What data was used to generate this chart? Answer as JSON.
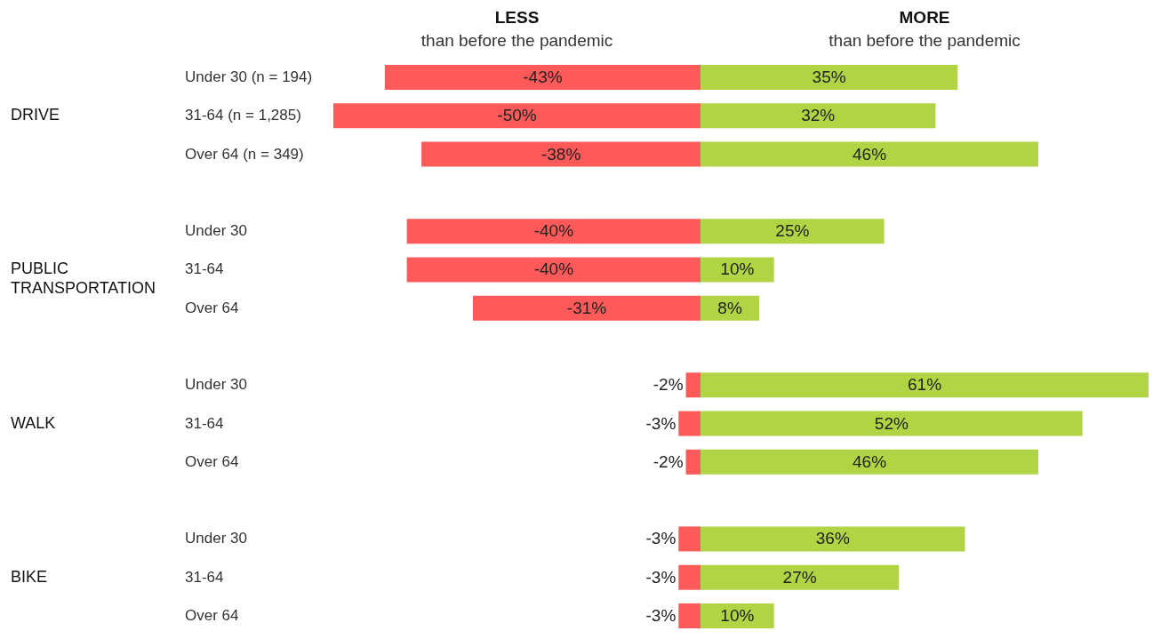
{
  "chart_data": {
    "type": "bar",
    "orientation": "horizontal",
    "stacked": true,
    "data_labels": true,
    "categories": [
      "Under 30 (n = 194)",
      "31-64 (n = 1,285)",
      "Over 64 (n = 349)",
      "Under 30",
      "31-64",
      "Over 64",
      "Under 30",
      "31-64",
      "Over 64",
      "Under 30",
      "31-64",
      "Over 64"
    ],
    "annotations": [
      "DRIVE",
      "PUBLIC TRANSPORTATION",
      "WALK",
      "BIKE"
    ],
    "series": [
      {
        "name": "LESS than before the pandemic",
        "color": "#ff5a5a",
        "values": [
          -43,
          -50,
          -38,
          -40,
          -40,
          -31,
          -2,
          -3,
          -2,
          -3,
          -3,
          -3
        ],
        "value_labels": [
          "-43%",
          "-50%",
          "-38%",
          "-40%",
          "-40%",
          "-31%",
          "-2%",
          "-3%",
          "-2%",
          "-3%",
          "-3%",
          "-3%"
        ]
      },
      {
        "name": "MORE than before the pandemic",
        "color": "#b0d444",
        "values": [
          35,
          32,
          46,
          25,
          10,
          8,
          61,
          52,
          46,
          36,
          27,
          10
        ],
        "value_labels": [
          "35%",
          "32%",
          "46%",
          "25%",
          "10%",
          "8%",
          "61%",
          "52%",
          "46%",
          "36%",
          "27%",
          "10%"
        ]
      }
    ]
  }
}
